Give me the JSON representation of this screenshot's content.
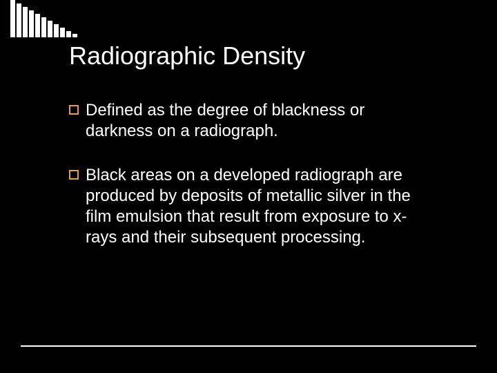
{
  "slide": {
    "background_color": "#000000",
    "title": "Radiographic Density",
    "title_color": "#ffffff",
    "title_fontsize": 36,
    "bullets": [
      {
        "text": "Defined as the degree of blackness or darkness on a radiograph."
      },
      {
        "text": "Black areas on a developed radiograph are produced by deposits of metallic silver in the film emulsion that result from exposure to x-rays and their subsequent processing."
      }
    ],
    "bullet_text_color": "#ffffff",
    "bullet_fontsize": 24,
    "bullet_marker_border_color": "#e69d4a",
    "decor_bar_color": "#ffffff",
    "decor_bar_heights": [
      54,
      49,
      44,
      39,
      34,
      29,
      24,
      19,
      14,
      9,
      5
    ],
    "footer_line_color": "#ffffff"
  }
}
